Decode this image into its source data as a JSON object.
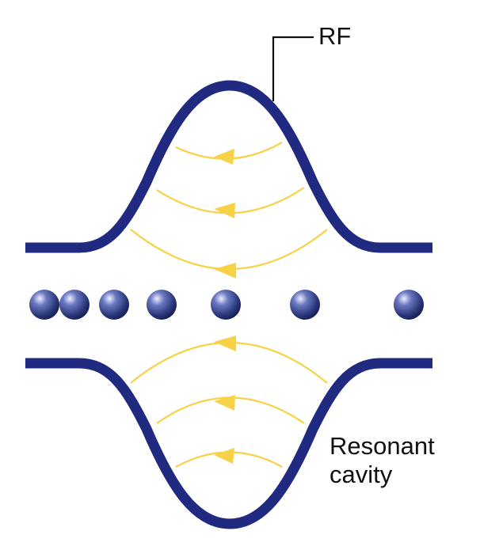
{
  "labels": {
    "rf": "RF",
    "cavity_line1": "Resonant",
    "cavity_line2": "cavity"
  },
  "colors": {
    "cavity_wall": "#1f2a80",
    "field_line": "#f7d247",
    "particle_dark": "#23306f",
    "particle_mid": "#4858a8",
    "particle_light": "#eef0ff",
    "leader_line": "#111111",
    "text": "#111111"
  },
  "field_lines_direction": "right-to-left",
  "particle_count": 7
}
